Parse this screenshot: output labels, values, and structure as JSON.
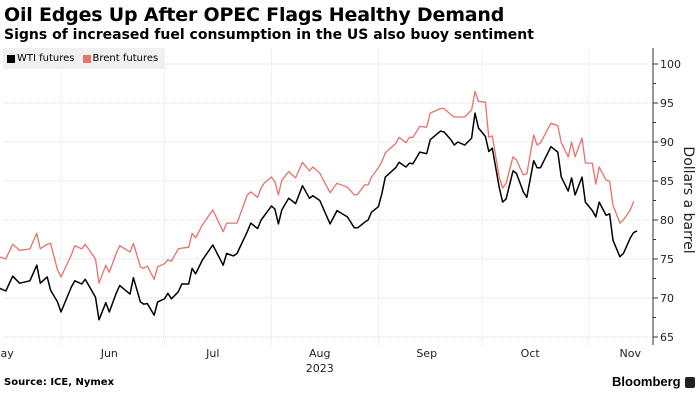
{
  "title": "Oil Edges Up After OPEC Flags Healthy Demand",
  "subtitle": "Signs of increased fuel consumption in the US also buoy sentiment",
  "source": "Source: ICE, Nymex",
  "brand": "Bloomberg",
  "colors": {
    "wti": "#000000",
    "brent": "#e8716b",
    "grid": "#dddddd",
    "legend_bg": "#f0f0f0"
  },
  "chart_data": {
    "type": "line",
    "title": "Oil Edges Up After OPEC Flags Healthy Demand",
    "subtitle": "Signs of increased fuel consumption in the US also buoy sentiment",
    "ylabel": "Dollars a barrel",
    "xlabel": "",
    "year_label": "2023",
    "ylim": [
      65,
      100
    ],
    "yticks": [
      65,
      70,
      75,
      80,
      85,
      90,
      95,
      100
    ],
    "y_axis_side": "right",
    "grid": true,
    "legend_placement": "top-left",
    "month_labels": [
      {
        "label": "May",
        "date": "2023-05-15"
      },
      {
        "label": "Jun",
        "date": "2023-06-15"
      },
      {
        "label": "Jul",
        "date": "2023-07-15"
      },
      {
        "label": "Aug",
        "date": "2023-08-15"
      },
      {
        "label": "Sep",
        "date": "2023-09-15"
      },
      {
        "label": "Oct",
        "date": "2023-10-15"
      },
      {
        "label": "Nov",
        "date": "2023-11-13"
      }
    ],
    "month_starts": [
      "2023-06-01",
      "2023-07-01",
      "2023-08-01",
      "2023-09-01",
      "2023-10-01",
      "2023-11-01"
    ],
    "x": [
      "2023-05-14",
      "2023-05-16",
      "2023-05-18",
      "2023-05-20",
      "2023-05-23",
      "2023-05-25",
      "2023-05-26",
      "2023-05-28",
      "2023-05-29",
      "2023-05-31",
      "2023-06-01",
      "2023-06-04",
      "2023-06-05",
      "2023-06-07",
      "2023-06-08",
      "2023-06-11",
      "2023-06-12",
      "2023-06-14",
      "2023-06-15",
      "2023-06-17",
      "2023-06-18",
      "2023-06-21",
      "2023-06-22",
      "2023-06-24",
      "2023-06-25",
      "2023-06-26",
      "2023-06-28",
      "2023-06-29",
      "2023-07-01",
      "2023-07-02",
      "2023-07-03",
      "2023-07-05",
      "2023-07-06",
      "2023-07-08",
      "2023-07-09",
      "2023-07-10",
      "2023-07-12",
      "2023-07-15",
      "2023-07-18",
      "2023-07-19",
      "2023-07-21",
      "2023-07-22",
      "2023-07-25",
      "2023-07-26",
      "2023-07-28",
      "2023-07-29",
      "2023-07-30",
      "2023-08-01",
      "2023-08-02",
      "2023-08-03",
      "2023-08-04",
      "2023-08-06",
      "2023-08-08",
      "2023-08-10",
      "2023-08-12",
      "2023-08-13",
      "2023-08-15",
      "2023-08-18",
      "2023-08-20",
      "2023-08-23",
      "2023-08-25",
      "2023-08-26",
      "2023-08-28",
      "2023-08-29",
      "2023-08-30",
      "2023-09-01",
      "2023-09-02",
      "2023-09-03",
      "2023-09-06",
      "2023-09-07",
      "2023-09-09",
      "2023-09-10",
      "2023-09-11",
      "2023-09-13",
      "2023-09-15",
      "2023-09-16",
      "2023-09-19",
      "2023-09-20",
      "2023-09-22",
      "2023-09-23",
      "2023-09-24",
      "2023-09-26",
      "2023-09-28",
      "2023-09-29",
      "2023-09-30",
      "2023-10-02",
      "2023-10-03",
      "2023-10-04",
      "2023-10-06",
      "2023-10-07",
      "2023-10-08",
      "2023-10-10",
      "2023-10-11",
      "2023-10-13",
      "2023-10-14",
      "2023-10-16",
      "2023-10-17",
      "2023-10-18",
      "2023-10-21",
      "2023-10-23",
      "2023-10-24",
      "2023-10-26",
      "2023-10-27",
      "2023-10-28",
      "2023-10-30",
      "2023-10-31",
      "2023-11-02",
      "2023-11-03",
      "2023-11-04",
      "2023-11-06",
      "2023-11-07",
      "2023-11-08",
      "2023-11-10",
      "2023-11-11",
      "2023-11-13",
      "2023-11-14",
      "2023-11-15"
    ],
    "series": [
      {
        "name": "WTI futures",
        "color": "#000000",
        "values": [
          71.3,
          70.9,
          72.8,
          71.9,
          72.2,
          74.2,
          71.9,
          72.7,
          71.0,
          69.5,
          68.2,
          71.4,
          72.2,
          71.8,
          72.4,
          70.1,
          67.2,
          69.4,
          68.2,
          70.6,
          71.6,
          70.5,
          72.6,
          69.5,
          69.2,
          69.3,
          67.8,
          69.5,
          69.9,
          70.6,
          69.9,
          70.8,
          71.8,
          71.8,
          73.8,
          73.1,
          74.9,
          76.8,
          74.2,
          75.7,
          75.4,
          75.7,
          78.5,
          79.6,
          78.9,
          80.0,
          80.6,
          81.8,
          81.4,
          79.5,
          81.3,
          82.8,
          82.1,
          84.4,
          82.8,
          83.1,
          82.5,
          79.5,
          81.2,
          80.4,
          79.0,
          79.0,
          79.7,
          80.0,
          81.0,
          81.7,
          83.4,
          85.5,
          86.7,
          87.4,
          86.8,
          87.3,
          87.2,
          88.7,
          88.5,
          90.3,
          91.4,
          91.3,
          90.3,
          89.6,
          90.0,
          89.6,
          90.5,
          93.7,
          91.8,
          90.7,
          88.8,
          89.2,
          84.2,
          82.3,
          82.7,
          86.3,
          86.0,
          83.6,
          82.9,
          87.6,
          86.7,
          86.7,
          89.4,
          88.7,
          85.5,
          83.7,
          85.4,
          83.2,
          85.5,
          82.3,
          81.2,
          80.4,
          82.3,
          80.6,
          80.8,
          77.4,
          75.3,
          75.7,
          77.7,
          78.4,
          78.6
        ]
      },
      {
        "name": "Brent futures",
        "color": "#e8716b",
        "values": [
          75.3,
          75.0,
          76.9,
          76.1,
          76.3,
          78.3,
          76.3,
          76.9,
          77.0,
          73.6,
          72.7,
          75.5,
          76.7,
          76.3,
          76.9,
          75.0,
          71.9,
          74.2,
          73.3,
          75.7,
          76.7,
          75.9,
          77.0,
          74.0,
          73.8,
          74.1,
          72.4,
          74.0,
          74.4,
          74.9,
          74.7,
          76.3,
          76.4,
          76.5,
          78.3,
          77.7,
          79.4,
          81.3,
          78.5,
          79.6,
          79.6,
          79.6,
          83.2,
          83.6,
          82.9,
          84.1,
          84.8,
          85.5,
          84.9,
          83.2,
          85.1,
          86.2,
          85.4,
          87.4,
          86.3,
          86.8,
          86.0,
          83.5,
          84.7,
          84.2,
          83.2,
          83.3,
          84.5,
          84.5,
          85.5,
          86.7,
          87.5,
          88.6,
          89.8,
          90.6,
          89.9,
          90.6,
          90.6,
          92.0,
          91.9,
          93.7,
          94.3,
          94.3,
          93.5,
          93.2,
          93.2,
          93.2,
          94.1,
          96.5,
          95.2,
          95.1,
          90.6,
          90.8,
          85.5,
          84.1,
          84.7,
          88.1,
          87.7,
          85.8,
          85.9,
          90.9,
          89.6,
          89.9,
          92.4,
          92.1,
          89.9,
          88.1,
          90.0,
          88.1,
          90.5,
          87.3,
          87.3,
          84.6,
          86.8,
          85.1,
          85.0,
          81.9,
          79.6,
          80.0,
          81.3,
          82.4,
          null
        ]
      }
    ]
  }
}
